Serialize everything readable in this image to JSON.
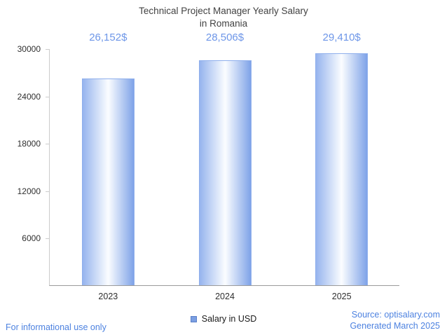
{
  "title": {
    "line1": "Technical Project Manager Yearly Salary",
    "line2": "in Romania"
  },
  "chart_data": {
    "type": "bar",
    "title": "Technical Project Manager Yearly Salary in Romania",
    "categories": [
      "2023",
      "2024",
      "2025"
    ],
    "values": [
      26152,
      28506,
      29410
    ],
    "value_labels": [
      "26,152$",
      "28,506$",
      "29,410$"
    ],
    "xlabel": "",
    "ylabel": "",
    "ylim": [
      0,
      30000
    ],
    "yticks": [
      6000,
      12000,
      18000,
      24000,
      30000
    ],
    "grid": false,
    "legend_position": "bottom",
    "legend": [
      {
        "label": "Salary in USD",
        "color": "#7b9fe2"
      }
    ],
    "bar_gradient": [
      "#96b4ee",
      "#fbfdff",
      "#7fa3e8"
    ]
  },
  "footer": {
    "left": "For informational use only",
    "source": "Source: optisalary.com",
    "generated": "Generated March 2025"
  },
  "colors": {
    "value_label": "#6d96e8",
    "footer_text": "#4d82e0",
    "axis_line": "#cccccc",
    "baseline": "#9a9a9a",
    "tick_text": "#2f2f2f"
  }
}
